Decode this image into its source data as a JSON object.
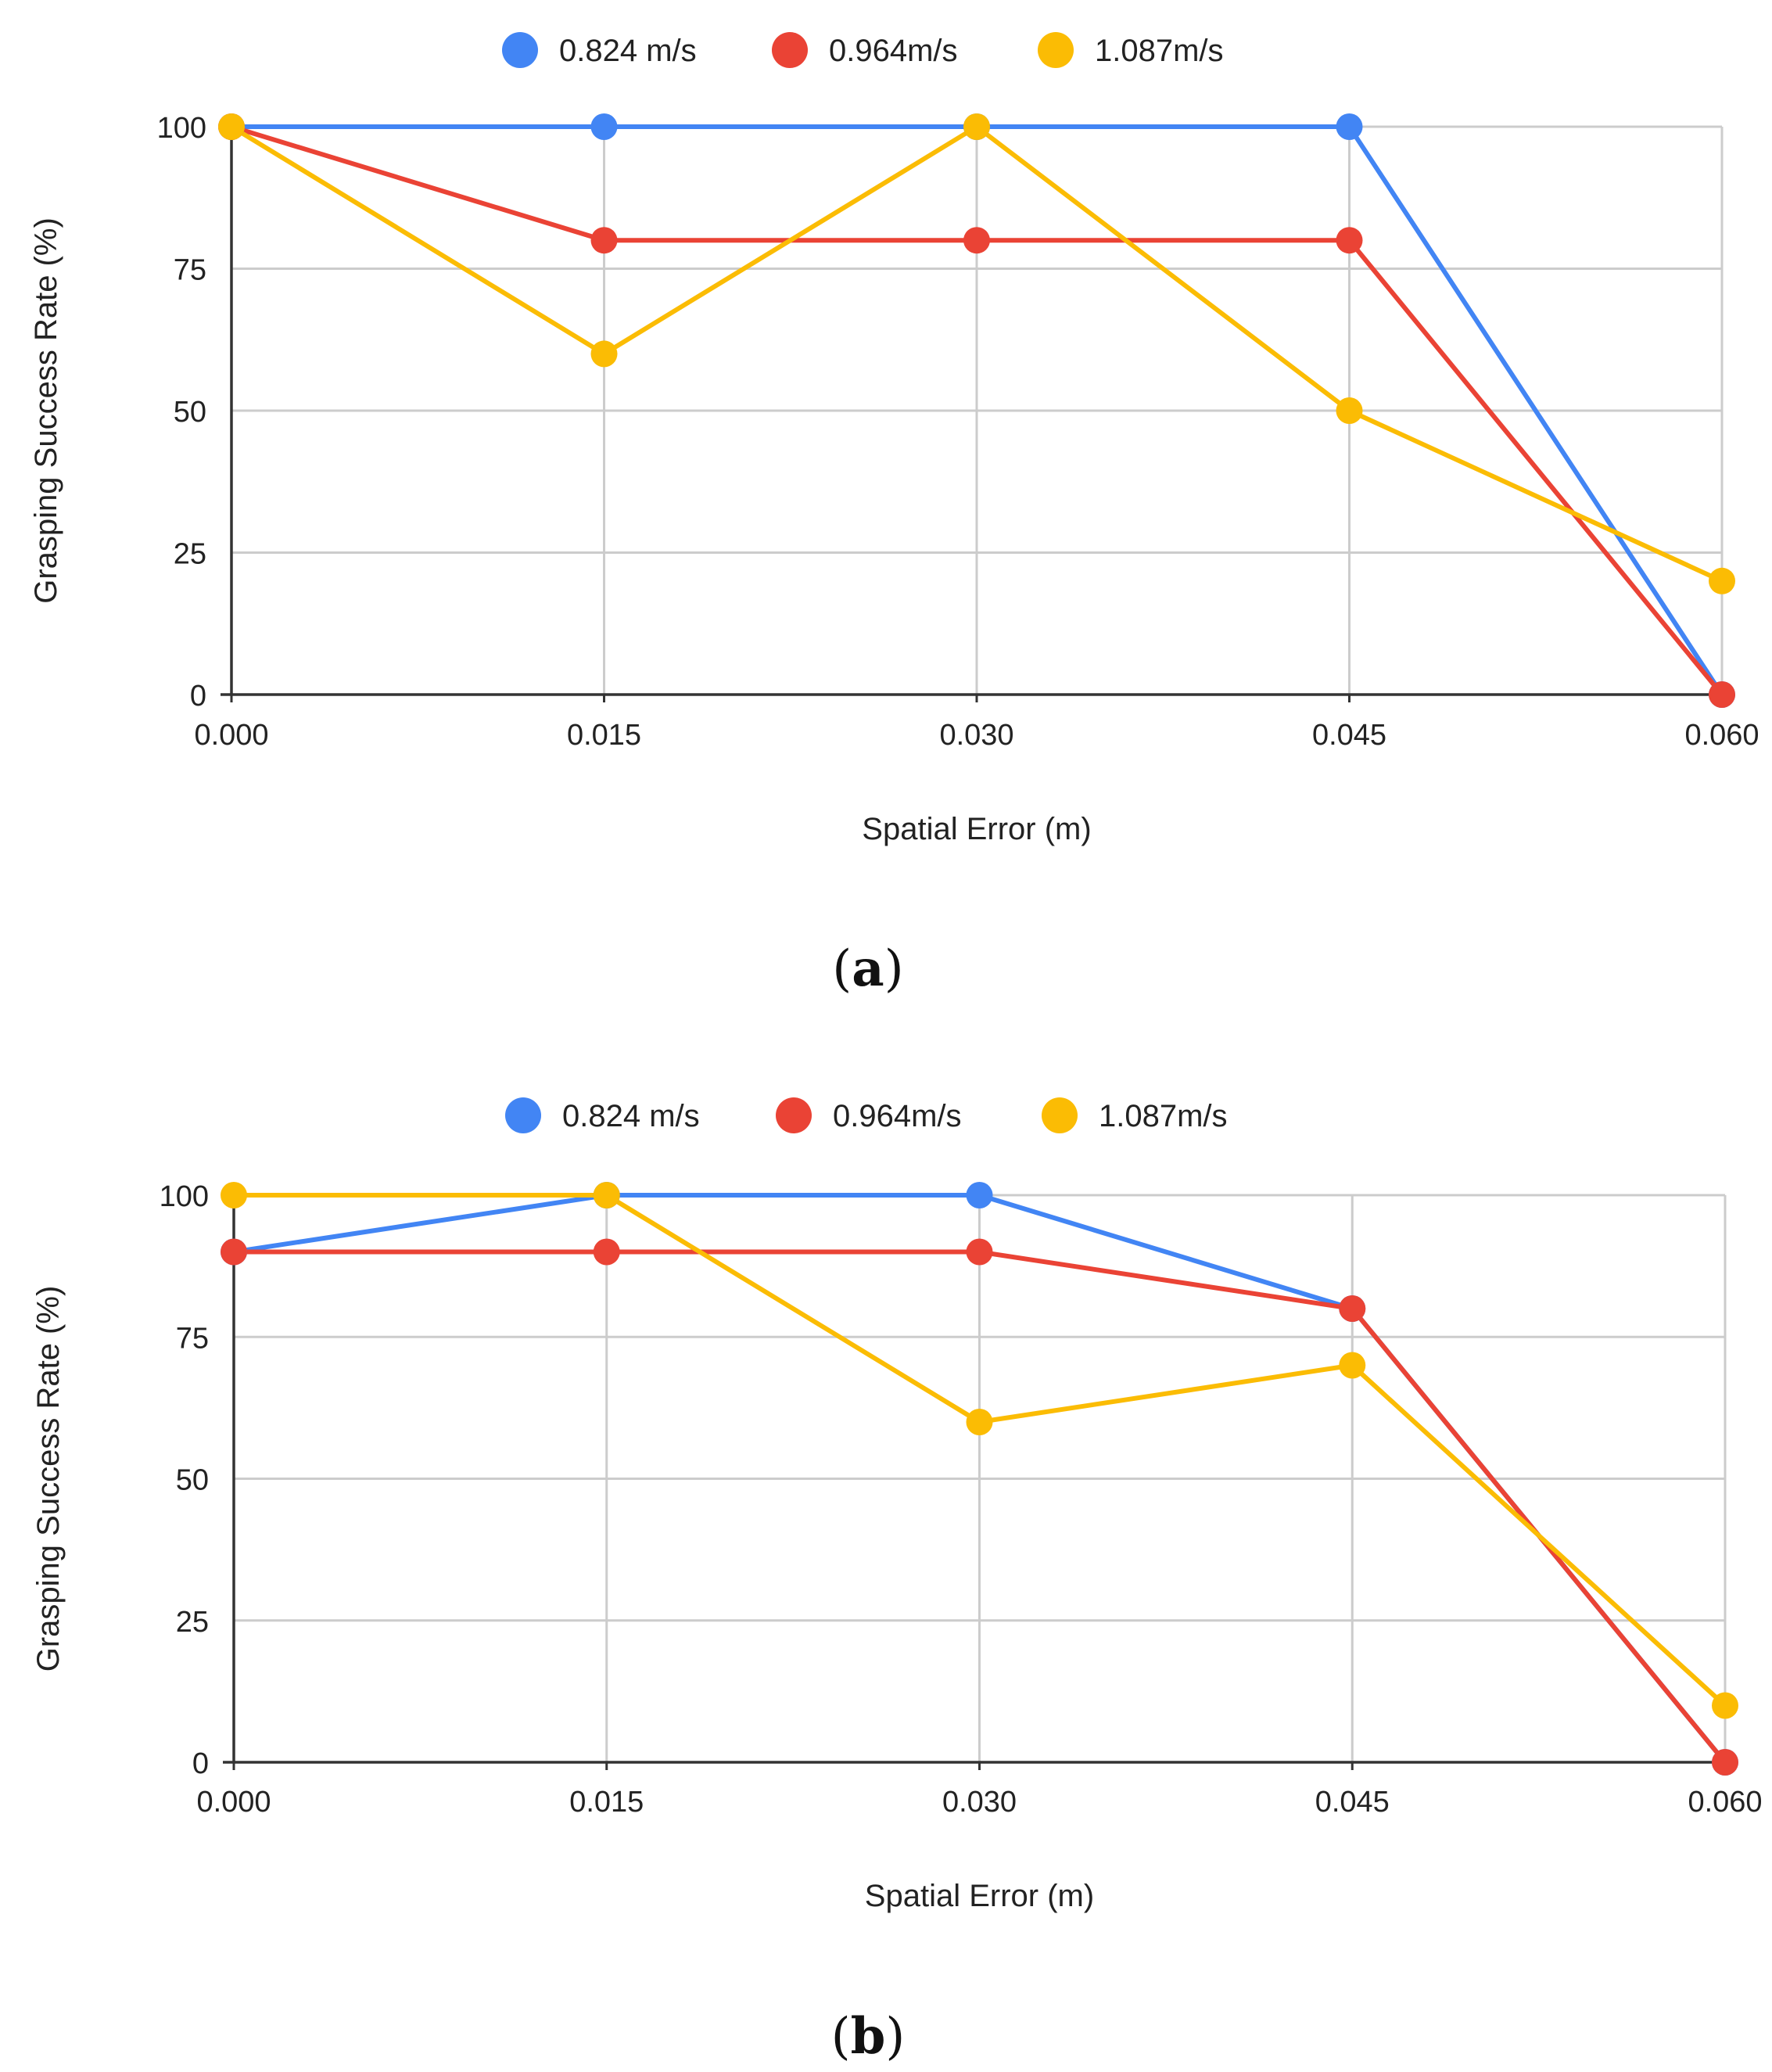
{
  "chart_data": [
    {
      "type": "line",
      "caption_open": "(",
      "caption_letter": "a",
      "caption_close": ")",
      "xlabel": "Spatial Error (m)",
      "ylabel": "Grasping Success Rate (%)",
      "x": [
        "0.000",
        "0.015",
        "0.030",
        "0.045",
        "0.060"
      ],
      "y_ticks": [
        "0",
        "25",
        "50",
        "75",
        "100"
      ],
      "ylim": [
        0,
        100
      ],
      "grid": true,
      "legend_position": "top-center",
      "series": [
        {
          "name": "0.824 m/s",
          "color": "#4285f4",
          "values": [
            100,
            100,
            100,
            100,
            0
          ]
        },
        {
          "name": "0.964m/s",
          "color": "#ea4335",
          "values": [
            100,
            80,
            80,
            80,
            0
          ]
        },
        {
          "name": "1.087m/s",
          "color": "#fbbc04",
          "values": [
            100,
            60,
            100,
            50,
            20
          ]
        }
      ]
    },
    {
      "type": "line",
      "caption_open": "(",
      "caption_letter": "b",
      "caption_close": ")",
      "xlabel": "Spatial Error (m)",
      "ylabel": "Grasping Success Rate (%)",
      "x": [
        "0.000",
        "0.015",
        "0.030",
        "0.045",
        "0.060"
      ],
      "y_ticks": [
        "0",
        "25",
        "50",
        "75",
        "100"
      ],
      "ylim": [
        0,
        100
      ],
      "grid": true,
      "legend_position": "top-center",
      "series": [
        {
          "name": "0.824 m/s",
          "color": "#4285f4",
          "values": [
            90,
            100,
            100,
            80,
            0
          ]
        },
        {
          "name": "0.964m/s",
          "color": "#ea4335",
          "values": [
            90,
            90,
            90,
            80,
            0
          ]
        },
        {
          "name": "1.087m/s",
          "color": "#fbbc04",
          "values": [
            100,
            100,
            60,
            70,
            10
          ]
        }
      ]
    }
  ]
}
